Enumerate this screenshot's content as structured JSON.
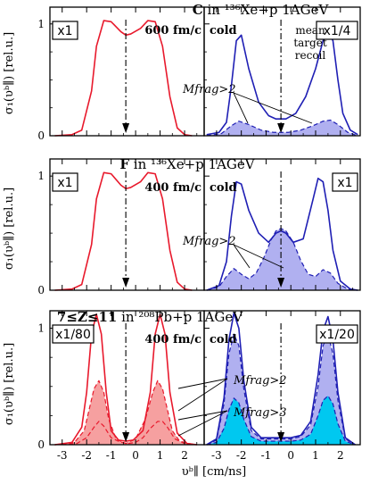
{
  "y_axis_label": "σ₁(υᵇ∥) [rel.u.]",
  "x_axis_label": "υᵇ∥ [cm/ns]",
  "row_titles": [
    {
      "a": "C",
      "b": " in ",
      "c": "¹³⁶Xe+p 1AGeV"
    },
    {
      "a": "F",
      "b": " in ",
      "c": "¹³⁶Xe+p 1AGeV"
    },
    {
      "a": "7≤Z≤11",
      "b": "  in  ",
      "c": "²⁰⁸Pb+p 1AGeV"
    }
  ],
  "scale_labels": [
    "x1",
    "x1/4",
    "x1",
    "x1",
    "x1/80",
    "x1/20"
  ],
  "time_labels": [
    "600 fm/c",
    "400 fm/c",
    "400 fm/c"
  ],
  "cold_label": "cold",
  "recoil_label": [
    "mean",
    "target",
    "recoil"
  ],
  "annotations": {
    "mfrag2": "Mfrag>2",
    "mfrag3": "Mfrag>3"
  },
  "y_ticks": [
    "0",
    "1"
  ],
  "x_ticks": [
    "-3",
    "-2",
    "-1",
    "0",
    "1",
    "2",
    "-3",
    "-2",
    "-1",
    "0",
    "1",
    "2"
  ],
  "colors": {
    "red": "#e8192c",
    "blue": "#1f1fb4",
    "pink_fill": "#f6a0a0",
    "blue_fill": "#b0b0f0",
    "cyan_fill": "#00c8f0"
  },
  "chart_data": {
    "type": "line",
    "xlim": [
      -3.5,
      2.8
    ],
    "ylim": [
      0,
      1.15
    ],
    "recoil_x": -0.4,
    "panels": [
      {
        "id": "C-x1",
        "series": [
          {
            "style": "solid",
            "color": "red",
            "x": [
              -3.3,
              -2.6,
              -2.2,
              -1.8,
              -1.6,
              -1.3,
              -1.0,
              -0.6,
              -0.4,
              -0.2,
              0.2,
              0.5,
              0.8,
              1.1,
              1.4,
              1.7,
              2.0,
              2.3
            ],
            "y": [
              0,
              0.01,
              0.05,
              0.4,
              0.8,
              1.03,
              1.02,
              0.93,
              0.9,
              0.91,
              0.96,
              1.03,
              1.02,
              0.8,
              0.35,
              0.07,
              0.01,
              0
            ]
          }
        ]
      },
      {
        "id": "C-cold",
        "series": [
          {
            "style": "solid",
            "color": "blue",
            "x": [
              -3.4,
              -2.9,
              -2.6,
              -2.4,
              -2.2,
              -2.0,
              -1.7,
              -1.3,
              -0.9,
              -0.6,
              -0.4,
              -0.2,
              0.2,
              0.6,
              1.0,
              1.3,
              1.5,
              1.7,
              1.9,
              2.1,
              2.4,
              2.7
            ],
            "y": [
              0.01,
              0.03,
              0.12,
              0.45,
              0.85,
              0.9,
              0.6,
              0.3,
              0.18,
              0.15,
              0.15,
              0.15,
              0.2,
              0.35,
              0.6,
              0.85,
              0.93,
              0.85,
              0.5,
              0.2,
              0.05,
              0.01
            ]
          },
          {
            "style": "dashed",
            "color": "blue",
            "fill": "blue_fill",
            "x": [
              -3.4,
              -2.8,
              -2.4,
              -2.1,
              -1.7,
              -1.2,
              -0.7,
              -0.4,
              -0.1,
              0.4,
              0.9,
              1.3,
              1.6,
              1.9,
              2.3,
              2.7
            ],
            "y": [
              0,
              0.02,
              0.09,
              0.13,
              0.1,
              0.05,
              0.03,
              0.03,
              0.03,
              0.05,
              0.09,
              0.13,
              0.14,
              0.1,
              0.03,
              0
            ]
          }
        ]
      },
      {
        "id": "F-x1",
        "series": [
          {
            "style": "solid",
            "color": "red",
            "x": [
              -3.3,
              -2.6,
              -2.2,
              -1.8,
              -1.6,
              -1.3,
              -1.0,
              -0.6,
              -0.4,
              -0.2,
              0.2,
              0.5,
              0.8,
              1.1,
              1.4,
              1.7,
              2.0,
              2.3
            ],
            "y": [
              0,
              0.01,
              0.05,
              0.4,
              0.8,
              1.03,
              1.02,
              0.92,
              0.89,
              0.9,
              0.95,
              1.03,
              1.02,
              0.8,
              0.35,
              0.07,
              0.01,
              0
            ]
          }
        ]
      },
      {
        "id": "F-cold",
        "series": [
          {
            "style": "solid",
            "color": "blue",
            "x": [
              -3.4,
              -2.9,
              -2.6,
              -2.4,
              -2.2,
              -2.0,
              -1.7,
              -1.3,
              -0.9,
              -0.6,
              -0.4,
              -0.2,
              0.1,
              0.5,
              0.9,
              1.1,
              1.3,
              1.5,
              1.7,
              2.0,
              2.4,
              2.7
            ],
            "y": [
              0,
              0.04,
              0.25,
              0.65,
              0.95,
              0.93,
              0.7,
              0.5,
              0.42,
              0.5,
              0.52,
              0.5,
              0.42,
              0.45,
              0.8,
              0.98,
              0.95,
              0.7,
              0.35,
              0.08,
              0.01,
              0
            ]
          },
          {
            "style": "dashed",
            "color": "blue",
            "fill": "blue_fill",
            "x": [
              -3.4,
              -2.9,
              -2.6,
              -2.3,
              -2.0,
              -1.7,
              -1.4,
              -1.1,
              -0.8,
              -0.6,
              -0.4,
              -0.2,
              0.1,
              0.4,
              0.7,
              1.0,
              1.3,
              1.6,
              1.9,
              2.3,
              2.7
            ],
            "y": [
              0,
              0.03,
              0.12,
              0.19,
              0.14,
              0.1,
              0.15,
              0.28,
              0.44,
              0.52,
              0.54,
              0.52,
              0.42,
              0.26,
              0.14,
              0.12,
              0.18,
              0.15,
              0.06,
              0.01,
              0
            ]
          }
        ]
      },
      {
        "id": "Pb-x1/80",
        "series": [
          {
            "style": "solid",
            "color": "red",
            "x": [
              -3.3,
              -2.6,
              -2.2,
              -2.0,
              -1.8,
              -1.6,
              -1.4,
              -1.2,
              -1.0,
              -0.7,
              -0.4,
              -0.1,
              0.3,
              0.6,
              0.8,
              1.0,
              1.2,
              1.4,
              1.7,
              2.1,
              2.5
            ],
            "y": [
              0,
              0.02,
              0.15,
              0.45,
              0.95,
              1.12,
              0.95,
              0.45,
              0.12,
              0.04,
              0.03,
              0.04,
              0.12,
              0.45,
              0.95,
              1.12,
              0.95,
              0.45,
              0.1,
              0.01,
              0
            ]
          },
          {
            "style": "dashed",
            "color": "red",
            "fill": "pink_fill",
            "x": [
              -3.3,
              -2.5,
              -2.1,
              -1.9,
              -1.7,
              -1.5,
              -1.3,
              -1.1,
              -0.8,
              -0.4,
              0.0,
              0.4,
              0.7,
              0.9,
              1.1,
              1.3,
              1.5,
              1.8,
              2.2,
              2.5
            ],
            "y": [
              0,
              0.02,
              0.12,
              0.3,
              0.48,
              0.55,
              0.45,
              0.22,
              0.05,
              0.01,
              0.05,
              0.22,
              0.45,
              0.55,
              0.48,
              0.3,
              0.12,
              0.03,
              0.01,
              0
            ]
          },
          {
            "style": "dashed",
            "color": "red",
            "x": [
              -3.3,
              -2.4,
              -2.0,
              -1.7,
              -1.5,
              -1.3,
              -1.0,
              -0.6,
              -0.3,
              0.0,
              0.3,
              0.6,
              0.9,
              1.1,
              1.3,
              1.6,
              2.0,
              2.5
            ],
            "y": [
              0,
              0.01,
              0.06,
              0.15,
              0.2,
              0.16,
              0.06,
              0.02,
              0.01,
              0.02,
              0.06,
              0.14,
              0.2,
              0.2,
              0.15,
              0.05,
              0.01,
              0
            ]
          }
        ]
      },
      {
        "id": "Pb-cold",
        "series": [
          {
            "style": "solid",
            "color": "blue",
            "x": [
              -3.4,
              -3.0,
              -2.7,
              -2.5,
              -2.3,
              -2.1,
              -1.9,
              -1.6,
              -1.2,
              -0.8,
              -0.4,
              0.0,
              0.4,
              0.8,
              1.1,
              1.3,
              1.5,
              1.7,
              1.9,
              2.2,
              2.6
            ],
            "y": [
              0,
              0.05,
              0.4,
              0.9,
              1.13,
              1.0,
              0.55,
              0.15,
              0.06,
              0.06,
              0.06,
              0.06,
              0.08,
              0.2,
              0.6,
              0.98,
              1.1,
              0.9,
              0.45,
              0.06,
              0
            ]
          },
          {
            "style": "dashed",
            "color": "blue",
            "fill": "blue_fill",
            "x": [
              -3.4,
              -3.0,
              -2.7,
              -2.5,
              -2.3,
              -2.1,
              -1.9,
              -1.6,
              -1.2,
              -0.8,
              -0.4,
              0.0,
              0.4,
              0.8,
              1.1,
              1.3,
              1.5,
              1.7,
              1.9,
              2.2,
              2.6
            ],
            "y": [
              0,
              0.04,
              0.35,
              0.78,
              0.95,
              0.85,
              0.48,
              0.12,
              0.05,
              0.05,
              0.05,
              0.05,
              0.07,
              0.17,
              0.5,
              0.85,
              0.95,
              0.78,
              0.38,
              0.05,
              0
            ]
          },
          {
            "style": "dashed",
            "color": "blue",
            "fill": "cyan_fill",
            "x": [
              -3.4,
              -3.0,
              -2.7,
              -2.5,
              -2.3,
              -2.1,
              -1.9,
              -1.6,
              -1.2,
              -0.8,
              -0.4,
              0.0,
              0.4,
              0.8,
              1.1,
              1.3,
              1.5,
              1.7,
              1.9,
              2.2,
              2.6
            ],
            "y": [
              0,
              0.02,
              0.14,
              0.3,
              0.4,
              0.36,
              0.22,
              0.07,
              0.03,
              0.03,
              0.03,
              0.03,
              0.04,
              0.09,
              0.25,
              0.38,
              0.42,
              0.35,
              0.18,
              0.03,
              0
            ]
          }
        ]
      }
    ]
  }
}
